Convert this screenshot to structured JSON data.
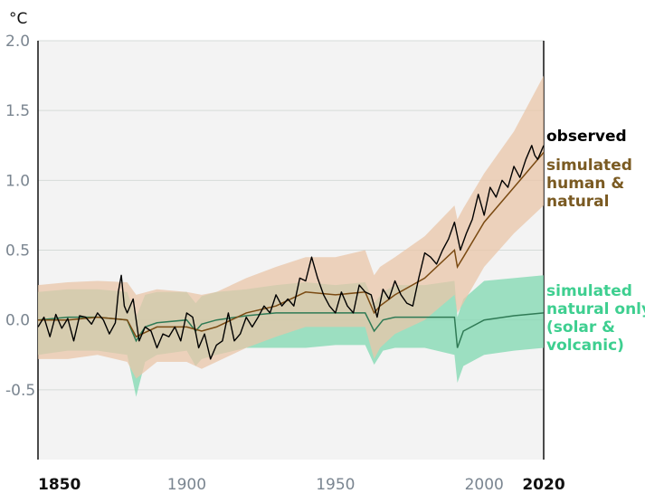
{
  "chart_data": {
    "type": "line",
    "ylabel": "°C",
    "xlim": [
      1850,
      2020
    ],
    "ylim": [
      -1.0,
      2.0
    ],
    "yticks": [
      2.0,
      1.5,
      1.0,
      0.5,
      0.0,
      -0.5
    ],
    "ytick_labels": [
      "2.0",
      "1.5",
      "1.0",
      "0.5",
      "0.0",
      "-0.5"
    ],
    "xticks": [
      {
        "value": 1850,
        "label": "1850",
        "bold": true
      },
      {
        "value": 1900,
        "label": "1900",
        "bold": false
      },
      {
        "value": 1950,
        "label": "1950",
        "bold": false
      },
      {
        "value": 2000,
        "label": "2000",
        "bold": false
      },
      {
        "value": 2020,
        "label": "2020",
        "bold": true
      }
    ],
    "grid": true,
    "colors": {
      "background": "#f3f3f3",
      "grid": "#d6dbd8",
      "observed": "#000000",
      "human_natural_line": "#7a4a12",
      "human_natural_band": "#eac6a8",
      "natural_line": "#2f7a55",
      "natural_band": "#7fd8b0",
      "human_natural_label": "#7a5a22",
      "natural_label": "#3ecf90"
    },
    "series": [
      {
        "name": "observed",
        "label_lines": [
          "observed"
        ],
        "x": [
          1850,
          1852,
          1854,
          1856,
          1858,
          1860,
          1862,
          1864,
          1866,
          1868,
          1870,
          1872,
          1874,
          1876,
          1877,
          1878,
          1879,
          1880,
          1882,
          1884,
          1886,
          1888,
          1890,
          1892,
          1894,
          1896,
          1898,
          1900,
          1902,
          1904,
          1906,
          1908,
          1910,
          1912,
          1914,
          1916,
          1918,
          1920,
          1922,
          1924,
          1926,
          1928,
          1930,
          1932,
          1934,
          1936,
          1938,
          1940,
          1942,
          1944,
          1946,
          1948,
          1950,
          1952,
          1954,
          1956,
          1958,
          1960,
          1962,
          1964,
          1966,
          1968,
          1970,
          1972,
          1974,
          1976,
          1978,
          1980,
          1982,
          1984,
          1986,
          1988,
          1990,
          1992,
          1994,
          1996,
          1998,
          2000,
          2002,
          2004,
          2006,
          2008,
          2010,
          2012,
          2014,
          2016,
          2017,
          2018,
          2020
        ],
        "y": [
          -0.05,
          0.02,
          -0.12,
          0.04,
          -0.06,
          0.01,
          -0.15,
          0.03,
          0.02,
          -0.03,
          0.05,
          0.0,
          -0.1,
          -0.02,
          0.2,
          0.32,
          0.1,
          0.05,
          0.15,
          -0.15,
          -0.05,
          -0.08,
          -0.2,
          -0.1,
          -0.12,
          -0.05,
          -0.15,
          0.05,
          0.02,
          -0.2,
          -0.1,
          -0.28,
          -0.18,
          -0.15,
          0.05,
          -0.15,
          -0.1,
          0.02,
          -0.05,
          0.02,
          0.1,
          0.05,
          0.18,
          0.1,
          0.15,
          0.1,
          0.3,
          0.28,
          0.45,
          0.3,
          0.18,
          0.1,
          0.05,
          0.2,
          0.1,
          0.05,
          0.25,
          0.2,
          0.18,
          0.02,
          0.22,
          0.15,
          0.28,
          0.18,
          0.12,
          0.1,
          0.3,
          0.48,
          0.45,
          0.4,
          0.5,
          0.58,
          0.7,
          0.5,
          0.62,
          0.72,
          0.9,
          0.75,
          0.95,
          0.88,
          1.0,
          0.95,
          1.1,
          1.02,
          1.15,
          1.25,
          1.18,
          1.15,
          1.25
        ]
      },
      {
        "name": "simulated human & natural",
        "label_lines": [
          "simulated",
          "human &",
          "natural"
        ],
        "x": [
          1850,
          1860,
          1870,
          1880,
          1883,
          1890,
          1900,
          1905,
          1910,
          1920,
          1930,
          1940,
          1950,
          1960,
          1963,
          1965,
          1970,
          1980,
          1990,
          1991,
          1993,
          2000,
          2010,
          2020
        ],
        "y": [
          0.0,
          0.0,
          0.02,
          0.0,
          -0.12,
          -0.05,
          -0.05,
          -0.08,
          -0.05,
          0.05,
          0.1,
          0.2,
          0.18,
          0.2,
          0.05,
          0.1,
          0.18,
          0.3,
          0.5,
          0.38,
          0.45,
          0.7,
          0.95,
          1.2
        ],
        "band_lower": [
          -0.28,
          -0.28,
          -0.25,
          -0.3,
          -0.42,
          -0.3,
          -0.3,
          -0.35,
          -0.3,
          -0.2,
          -0.12,
          -0.05,
          -0.05,
          -0.05,
          -0.28,
          -0.2,
          -0.1,
          0.0,
          0.18,
          0.05,
          0.12,
          0.38,
          0.62,
          0.82
        ],
        "band_upper": [
          0.25,
          0.27,
          0.28,
          0.27,
          0.18,
          0.22,
          0.2,
          0.18,
          0.2,
          0.3,
          0.38,
          0.45,
          0.45,
          0.5,
          0.32,
          0.38,
          0.45,
          0.6,
          0.82,
          0.72,
          0.8,
          1.05,
          1.35,
          1.75
        ]
      },
      {
        "name": "simulated natural only (solar & volcanic)",
        "label_lines": [
          "simulated",
          "natural only",
          "(solar &",
          "volcanic)"
        ],
        "x": [
          1850,
          1860,
          1870,
          1880,
          1883,
          1886,
          1890,
          1900,
          1903,
          1905,
          1910,
          1920,
          1930,
          1940,
          1950,
          1960,
          1963,
          1966,
          1970,
          1980,
          1990,
          1991,
          1993,
          2000,
          2010,
          2020
        ],
        "y": [
          0.0,
          0.02,
          0.02,
          0.0,
          -0.15,
          -0.05,
          -0.02,
          0.0,
          -0.08,
          -0.03,
          0.0,
          0.03,
          0.05,
          0.05,
          0.05,
          0.05,
          -0.08,
          0.0,
          0.02,
          0.02,
          0.02,
          -0.2,
          -0.08,
          0.0,
          0.03,
          0.05
        ],
        "band_lower": [
          -0.25,
          -0.22,
          -0.22,
          -0.25,
          -0.55,
          -0.3,
          -0.25,
          -0.22,
          -0.33,
          -0.28,
          -0.25,
          -0.2,
          -0.2,
          -0.2,
          -0.18,
          -0.18,
          -0.32,
          -0.22,
          -0.2,
          -0.2,
          -0.25,
          -0.45,
          -0.33,
          -0.25,
          -0.22,
          -0.2
        ],
        "band_upper": [
          0.2,
          0.22,
          0.22,
          0.2,
          0.02,
          0.18,
          0.2,
          0.2,
          0.12,
          0.17,
          0.2,
          0.22,
          0.25,
          0.27,
          0.25,
          0.27,
          0.12,
          0.2,
          0.25,
          0.25,
          0.28,
          0.02,
          0.15,
          0.28,
          0.3,
          0.32
        ]
      }
    ]
  }
}
